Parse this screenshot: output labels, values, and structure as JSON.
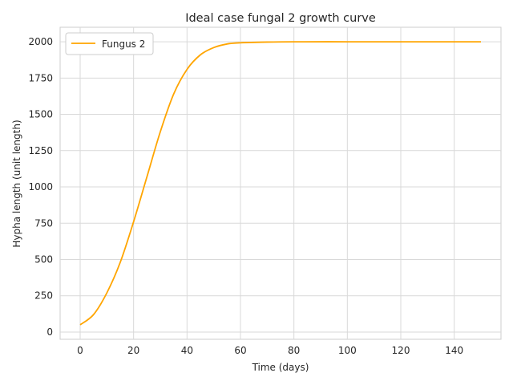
{
  "chart_data": {
    "type": "line",
    "title": "Ideal case fungal 2 growth curve",
    "xlabel": "Time (days)",
    "ylabel": "Hypha length (unit length)",
    "xlim": [
      -7.5,
      157.5
    ],
    "ylim": [
      -50,
      2100
    ],
    "xticks": [
      0,
      20,
      40,
      60,
      80,
      100,
      120,
      140
    ],
    "yticks": [
      0,
      250,
      500,
      750,
      1000,
      1250,
      1500,
      1750,
      2000
    ],
    "grid": true,
    "legend_position": "upper-left",
    "series": [
      {
        "name": "Fungus 2",
        "color": "#ffa500",
        "x": [
          0,
          5,
          10,
          15,
          20,
          25,
          30,
          35,
          40,
          45,
          50,
          55,
          60,
          70,
          80,
          100,
          120,
          150
        ],
        "y": [
          50,
          120,
          270,
          480,
          760,
          1070,
          1380,
          1640,
          1810,
          1910,
          1960,
          1985,
          1993,
          1998,
          2000,
          2000,
          2000,
          2000
        ]
      }
    ]
  }
}
